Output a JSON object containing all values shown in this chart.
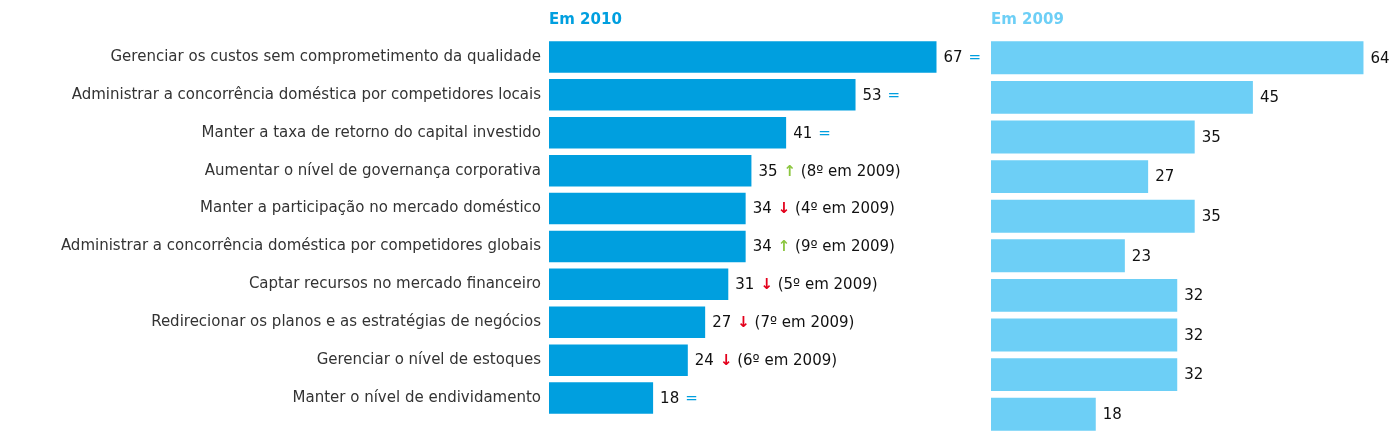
{
  "chart_data": [
    {
      "type": "bar",
      "orientation": "horizontal",
      "title": "Em 2010",
      "categories": [
        "Gerenciar os custos sem comprometimento da qualidade",
        "Administrar a concorrência doméstica por competidores locais",
        "Manter a taxa de retorno do capital investido",
        "Aumentar o nível de governança corporativa",
        "Manter a participação no mercado doméstico",
        "Administrar a concorrência doméstica por competidores globais",
        "Captar recursos no mercado financeiro",
        "Redirecionar os planos e as estratégias de negócios",
        "Gerenciar o nível de estoques",
        "Manter o nível de endividamento"
      ],
      "values": [
        67,
        53,
        41,
        35,
        34,
        34,
        31,
        27,
        24,
        18
      ],
      "color": "#009fdf",
      "data_labels": true,
      "tick_labels": "y",
      "annotations": [
        {
          "text": "=",
          "x": 67,
          "y": "Gerenciar os custos sem comprometimento da qualidade"
        },
        {
          "text": "=",
          "x": 53,
          "y": "Administrar a concorrência doméstica por competidores locais"
        },
        {
          "text": "=",
          "x": 41,
          "y": "Manter a taxa de retorno do capital investido"
        },
        {
          "text": "↑ (8º em 2009)",
          "x": 35,
          "y": "Aumentar o nível de governança corporativa"
        },
        {
          "text": "↓ (4º em 2009)",
          "x": 34,
          "y": "Manter a participação no mercado doméstico"
        },
        {
          "text": "↑ (9º em 2009)",
          "x": 34,
          "y": "Administrar a concorrência doméstica por competidores globais"
        },
        {
          "text": "↓ (5º em 2009)",
          "x": 31,
          "y": "Captar recursos no mercado financeiro"
        },
        {
          "text": "↓ (7º em 2009)",
          "x": 27,
          "y": "Redirecionar os planos e as estratégias de negócios"
        },
        {
          "text": "↓ (6º em 2009)",
          "x": 24,
          "y": "Gerenciar o nível de estoques"
        },
        {
          "text": "=",
          "x": 18,
          "y": "Manter o nível de endividamento"
        }
      ]
    },
    {
      "type": "bar",
      "orientation": "horizontal",
      "title": "Em 2009",
      "categories": [
        null,
        null,
        null,
        null,
        null,
        null,
        null,
        null,
        null,
        null
      ],
      "values": [
        64,
        45,
        35,
        27,
        35,
        23,
        32,
        32,
        32,
        18
      ],
      "color": "#6dcff6",
      "data_labels": true,
      "tick_labels": false
    }
  ]
}
